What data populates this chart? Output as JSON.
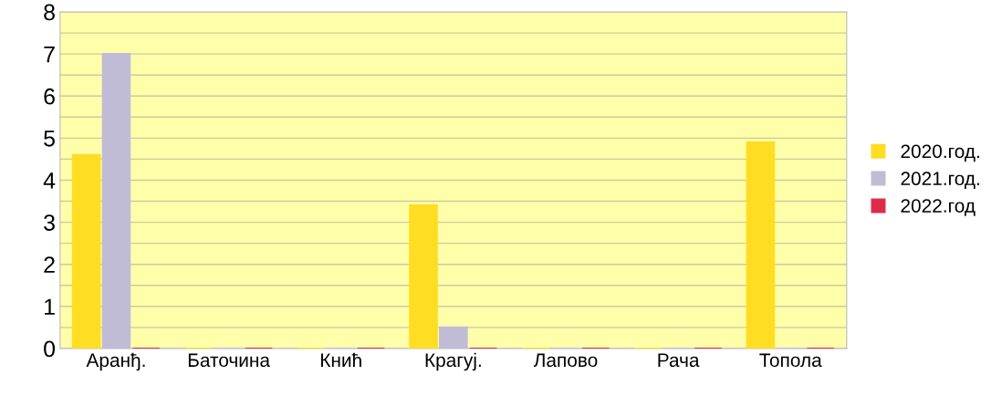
{
  "chart_data": {
    "type": "bar",
    "categories": [
      "Аранђ.",
      "Баточина",
      "Кнић",
      "Крагуј.",
      "Лапово",
      "Рача",
      "Топола"
    ],
    "series": [
      {
        "name": "2020.год.",
        "color": "#ffdd22",
        "values": [
          4.6,
          0,
          0,
          3.4,
          0,
          0,
          4.9
        ]
      },
      {
        "name": "2021.год.",
        "color": "#c0bcd6",
        "values": [
          7,
          0,
          0,
          0.5,
          0,
          0,
          0
        ]
      },
      {
        "name": "2022.год",
        "color": "#dd2a4a",
        "values": [
          0,
          0,
          0,
          0,
          0,
          0,
          0
        ]
      }
    ],
    "ylim": [
      0,
      8
    ],
    "yticks": [
      0,
      {
        "value": 0.5,
        "label": null
      },
      1,
      {
        "value": 1.5,
        "label": null
      },
      2,
      {
        "value": 2.5,
        "label": null
      },
      3,
      {
        "value": 3.5,
        "label": null
      },
      4,
      {
        "value": 4.5,
        "label": null
      },
      5,
      {
        "value": 5.5,
        "label": null
      },
      6,
      {
        "value": 6.5,
        "label": null
      },
      7,
      {
        "value": 7.5,
        "label": null
      },
      8
    ],
    "grid": "y",
    "legend": "right"
  }
}
